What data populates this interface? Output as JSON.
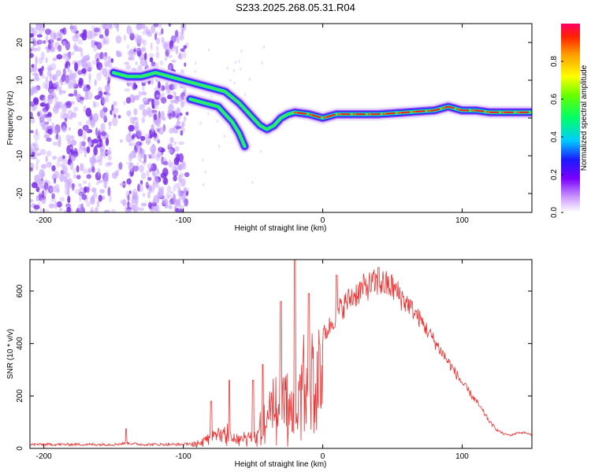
{
  "title": "S233.2025.268.05.31.R04",
  "colors": {
    "snr_line": "#ee3333",
    "speckle": "#7a2ee8",
    "ridge_core": "#ee2222"
  },
  "chart_data": [
    {
      "type": "heatmap",
      "title": "S233.2025.268.05.31.R04",
      "xlabel": "Height of straight line (km)",
      "ylabel": "Frequency (Hz)",
      "xlim": [
        -210,
        150
      ],
      "ylim": [
        -25,
        25
      ],
      "xticks": [
        -200,
        -100,
        0,
        100
      ],
      "yticks": [
        -20,
        -10,
        0,
        10,
        20
      ],
      "noise_region": {
        "x_range": [
          -210,
          -97
        ],
        "description": "scattered low-amplitude speckle"
      },
      "ridge": {
        "x": [
          -150,
          -140,
          -130,
          -120,
          -110,
          -100,
          -90,
          -80,
          -70,
          -60,
          -55,
          -50,
          -45,
          -40,
          -35,
          -30,
          -25,
          -20,
          -10,
          0,
          10,
          20,
          40,
          60,
          80,
          90,
          100,
          110,
          120,
          130,
          150
        ],
        "freq": [
          12,
          11,
          11,
          12,
          11,
          10,
          9,
          8,
          7,
          4,
          2,
          0,
          -2,
          -3,
          -2,
          0,
          1,
          1.5,
          1,
          0,
          1,
          1,
          1,
          1.5,
          2,
          3,
          2,
          2,
          1.5,
          1.5,
          1.5
        ]
      },
      "lower_branch": {
        "x": [
          -95,
          -90,
          -85,
          -80,
          -75,
          -70,
          -65,
          -60,
          -56
        ],
        "freq": [
          5,
          4.5,
          4,
          3.5,
          3,
          1,
          -1,
          -4,
          -7.5
        ]
      },
      "colorbar": {
        "label": "Normalized spectral amplitude",
        "range": [
          0,
          1
        ],
        "ticks": [
          "0.0",
          "0.2",
          "0.4",
          "0.6",
          "0.8"
        ]
      }
    },
    {
      "type": "line",
      "xlabel": "Height of straight line (km)",
      "ylabel": "SNR (10 * v/v)",
      "xlim": [
        -210,
        150
      ],
      "ylim": [
        0,
        720
      ],
      "xticks": [
        -200,
        -100,
        0,
        100
      ],
      "yticks": [
        0,
        200,
        400,
        600
      ],
      "series": [
        {
          "name": "SNR",
          "envelope_x": [
            -210,
            -180,
            -150,
            -140,
            -130,
            -100,
            -95,
            -90,
            -85,
            -80,
            -75,
            -70,
            -65,
            -60,
            -55,
            -50,
            -45,
            -40,
            -35,
            -30,
            -25,
            -20,
            -15,
            -10,
            -5,
            0,
            5,
            10,
            20,
            30,
            40,
            50,
            60,
            70,
            80,
            90,
            100,
            110,
            115,
            120,
            125,
            130,
            135,
            140,
            145,
            150
          ],
          "envelope_y": [
            15,
            15,
            15,
            20,
            15,
            15,
            20,
            25,
            40,
            80,
            70,
            90,
            60,
            50,
            60,
            90,
            120,
            180,
            230,
            260,
            300,
            330,
            360,
            380,
            400,
            430,
            470,
            520,
            580,
            620,
            640,
            620,
            560,
            490,
            410,
            330,
            250,
            180,
            140,
            100,
            70,
            55,
            50,
            60,
            60,
            50
          ],
          "spikes": [
            {
              "x": -141,
              "y": 75
            },
            {
              "x": -80,
              "y": 180
            },
            {
              "x": -67,
              "y": 260
            },
            {
              "x": -50,
              "y": 260
            },
            {
              "x": -43,
              "y": 320
            },
            {
              "x": -30,
              "y": 560
            },
            {
              "x": -20,
              "y": 720
            },
            {
              "x": -10,
              "y": 590
            },
            {
              "x": 10,
              "y": 660
            },
            {
              "x": 40,
              "y": 690
            }
          ]
        }
      ]
    }
  ]
}
